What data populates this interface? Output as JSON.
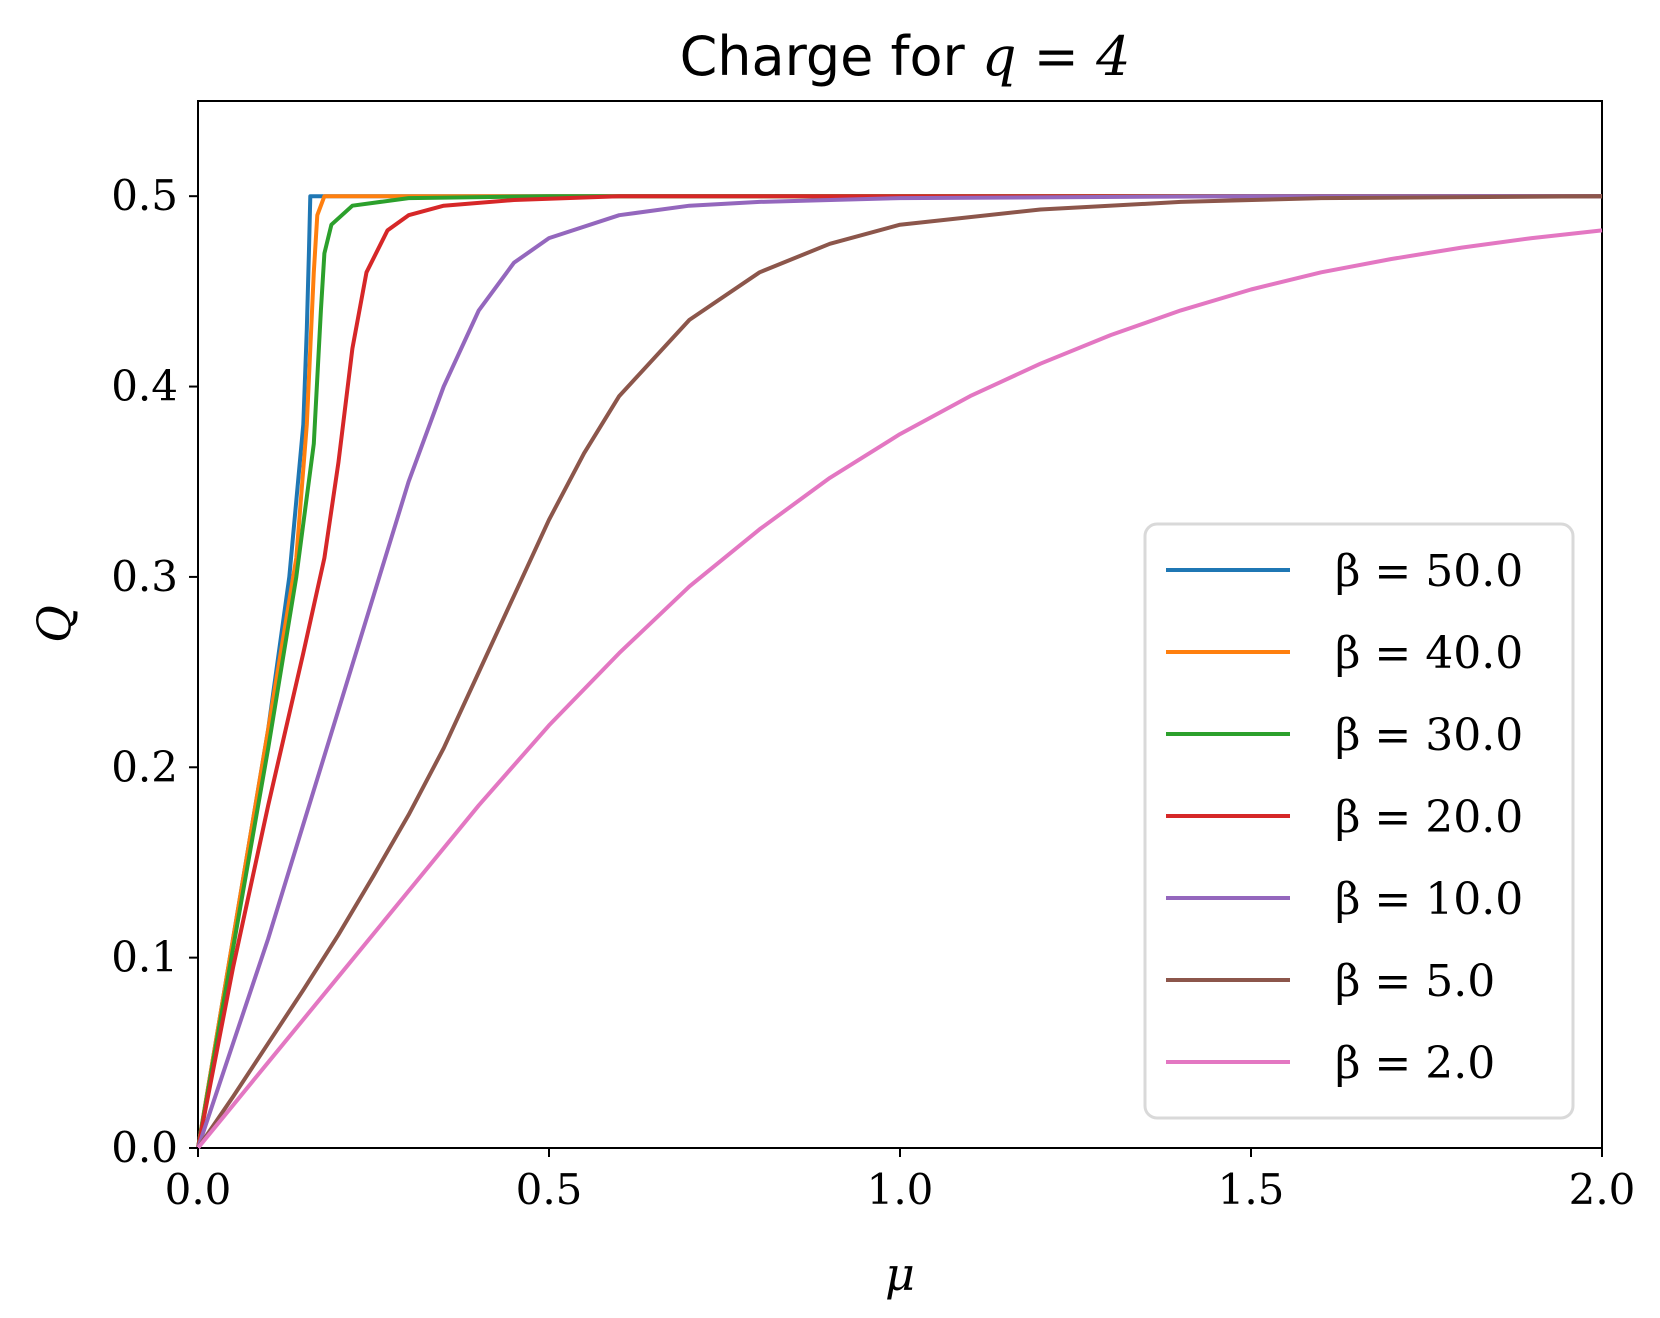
{
  "chart_data": {
    "type": "line",
    "title_prefix": "Charge for ",
    "title_math": "q = 4",
    "xlabel": "μ",
    "ylabel": "Q",
    "xlim": [
      0.0,
      2.0
    ],
    "ylim": [
      0.0,
      0.55
    ],
    "xticks": [
      0.0,
      0.5,
      1.0,
      1.5,
      2.0
    ],
    "xtick_labels": [
      "0.0",
      "0.5",
      "1.0",
      "1.5",
      "2.0"
    ],
    "yticks": [
      0.0,
      0.1,
      0.2,
      0.3,
      0.4,
      0.5
    ],
    "ytick_labels": [
      "0.0",
      "0.1",
      "0.2",
      "0.3",
      "0.4",
      "0.5"
    ],
    "grid": false,
    "legend_position": "lower-right",
    "series": [
      {
        "name": "β = 50.0",
        "color": "#1f77b4",
        "x": [
          0.0,
          0.05,
          0.1,
          0.13,
          0.15,
          0.155,
          0.158,
          0.16,
          0.2,
          0.5,
          1.0,
          1.5,
          2.0
        ],
        "y": [
          0.0,
          0.11,
          0.22,
          0.3,
          0.38,
          0.43,
          0.47,
          0.5,
          0.5,
          0.5,
          0.5,
          0.5,
          0.5
        ]
      },
      {
        "name": "β = 40.0",
        "color": "#ff7f0e",
        "x": [
          0.0,
          0.05,
          0.1,
          0.14,
          0.155,
          0.165,
          0.17,
          0.18,
          0.3,
          0.5,
          1.0,
          1.5,
          2.0
        ],
        "y": [
          0.0,
          0.11,
          0.22,
          0.31,
          0.38,
          0.46,
          0.49,
          0.5,
          0.5,
          0.5,
          0.5,
          0.5,
          0.5
        ]
      },
      {
        "name": "β = 30.0",
        "color": "#2ca02c",
        "x": [
          0.0,
          0.05,
          0.1,
          0.14,
          0.165,
          0.175,
          0.18,
          0.19,
          0.22,
          0.3,
          0.5,
          1.0,
          1.5,
          2.0
        ],
        "y": [
          0.0,
          0.105,
          0.21,
          0.3,
          0.37,
          0.44,
          0.47,
          0.485,
          0.495,
          0.499,
          0.5,
          0.5,
          0.5,
          0.5
        ]
      },
      {
        "name": "β = 20.0",
        "color": "#d62728",
        "x": [
          0.0,
          0.05,
          0.1,
          0.15,
          0.18,
          0.2,
          0.22,
          0.24,
          0.27,
          0.3,
          0.35,
          0.45,
          0.6,
          1.0,
          1.5,
          2.0
        ],
        "y": [
          0.0,
          0.095,
          0.18,
          0.26,
          0.31,
          0.36,
          0.42,
          0.46,
          0.482,
          0.49,
          0.495,
          0.498,
          0.5,
          0.5,
          0.5,
          0.5
        ]
      },
      {
        "name": "β = 10.0",
        "color": "#9467bd",
        "x": [
          0.0,
          0.05,
          0.1,
          0.15,
          0.2,
          0.25,
          0.3,
          0.35,
          0.4,
          0.45,
          0.5,
          0.6,
          0.7,
          0.8,
          1.0,
          1.5,
          2.0
        ],
        "y": [
          0.0,
          0.055,
          0.11,
          0.17,
          0.23,
          0.29,
          0.35,
          0.4,
          0.44,
          0.465,
          0.478,
          0.49,
          0.495,
          0.497,
          0.499,
          0.5,
          0.5
        ]
      },
      {
        "name": "β = 5.0",
        "color": "#8c564b",
        "x": [
          0.0,
          0.05,
          0.1,
          0.15,
          0.2,
          0.25,
          0.3,
          0.35,
          0.4,
          0.45,
          0.5,
          0.55,
          0.6,
          0.7,
          0.8,
          0.9,
          1.0,
          1.2,
          1.4,
          1.6,
          2.0
        ],
        "y": [
          0.0,
          0.027,
          0.055,
          0.083,
          0.112,
          0.143,
          0.175,
          0.21,
          0.25,
          0.29,
          0.33,
          0.365,
          0.395,
          0.435,
          0.46,
          0.475,
          0.485,
          0.493,
          0.497,
          0.499,
          0.5
        ]
      },
      {
        "name": "β = 2.0",
        "color": "#e377c2",
        "x": [
          0.0,
          0.1,
          0.2,
          0.3,
          0.4,
          0.5,
          0.6,
          0.7,
          0.8,
          0.9,
          1.0,
          1.1,
          1.2,
          1.3,
          1.4,
          1.5,
          1.6,
          1.7,
          1.8,
          1.9,
          2.0
        ],
        "y": [
          0.0,
          0.045,
          0.09,
          0.135,
          0.18,
          0.222,
          0.26,
          0.295,
          0.325,
          0.352,
          0.375,
          0.395,
          0.412,
          0.427,
          0.44,
          0.451,
          0.46,
          0.467,
          0.473,
          0.478,
          0.482
        ]
      }
    ]
  }
}
